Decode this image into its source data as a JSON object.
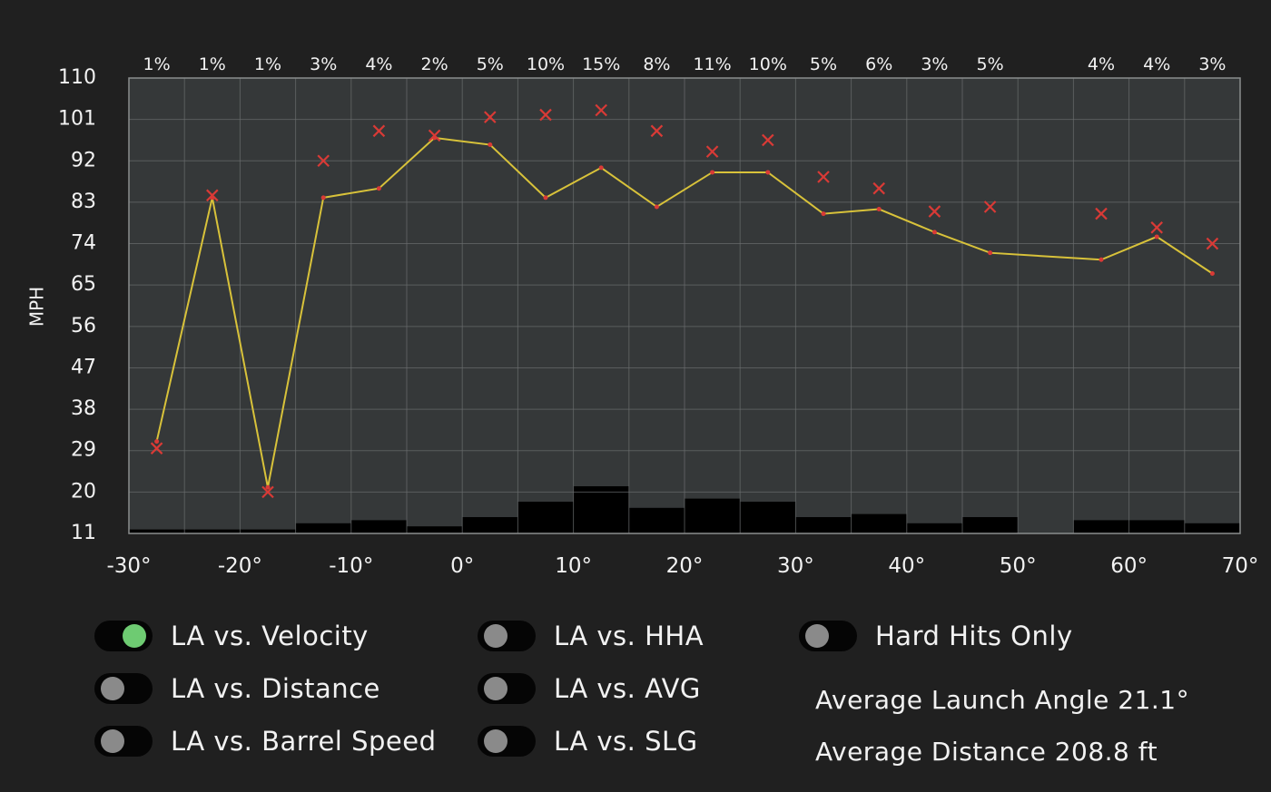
{
  "chart_data": {
    "type": "line",
    "ylabel": "MPH",
    "xlabel": "",
    "xlim": [
      -30,
      70
    ],
    "ylim": [
      11,
      110
    ],
    "x_ticks": [
      "-30°",
      "-20°",
      "-10°",
      "0°",
      "10°",
      "20°",
      "30°",
      "40°",
      "50°",
      "60°",
      "70°"
    ],
    "y_ticks": [
      "110",
      "101",
      "92",
      "83",
      "74",
      "65",
      "56",
      "47",
      "38",
      "29",
      "20",
      "11"
    ],
    "x_tick_values": [
      -30,
      -20,
      -10,
      0,
      10,
      20,
      30,
      40,
      50,
      60,
      70
    ],
    "y_tick_values": [
      110,
      101,
      92,
      83,
      74,
      65,
      56,
      47,
      38,
      29,
      20,
      11
    ],
    "bins": [
      {
        "center": -27.5,
        "pct": "1%",
        "bar": 1
      },
      {
        "center": -22.5,
        "pct": "1%",
        "bar": 1
      },
      {
        "center": -17.5,
        "pct": "1%",
        "bar": 1
      },
      {
        "center": -12.5,
        "pct": "3%",
        "bar": 3
      },
      {
        "center": -7.5,
        "pct": "4%",
        "bar": 4
      },
      {
        "center": -2.5,
        "pct": "2%",
        "bar": 2
      },
      {
        "center": 2.5,
        "pct": "5%",
        "bar": 5
      },
      {
        "center": 7.5,
        "pct": "10%",
        "bar": 10
      },
      {
        "center": 12.5,
        "pct": "15%",
        "bar": 15
      },
      {
        "center": 17.5,
        "pct": "8%",
        "bar": 8
      },
      {
        "center": 22.5,
        "pct": "11%",
        "bar": 11
      },
      {
        "center": 27.5,
        "pct": "10%",
        "bar": 10
      },
      {
        "center": 32.5,
        "pct": "5%",
        "bar": 5
      },
      {
        "center": 37.5,
        "pct": "6%",
        "bar": 6
      },
      {
        "center": 42.5,
        "pct": "3%",
        "bar": 3
      },
      {
        "center": 47.5,
        "pct": "5%",
        "bar": 5
      },
      {
        "center": 57.5,
        "pct": "4%",
        "bar": 4
      },
      {
        "center": 62.5,
        "pct": "4%",
        "bar": 4
      },
      {
        "center": 67.5,
        "pct": "3%",
        "bar": 3
      }
    ],
    "series": [
      {
        "type": "line",
        "color": "#d8c23a",
        "points": [
          [
            -27.5,
            31
          ],
          [
            -22.5,
            84
          ],
          [
            -17.5,
            21
          ],
          [
            -12.5,
            84
          ],
          [
            -7.5,
            86
          ],
          [
            -2.5,
            97
          ],
          [
            2.5,
            95.5
          ],
          [
            7.5,
            84
          ],
          [
            12.5,
            90.5
          ],
          [
            17.5,
            82
          ],
          [
            22.5,
            89.5
          ],
          [
            27.5,
            89.5
          ],
          [
            32.5,
            80.5
          ],
          [
            37.5,
            81.5
          ],
          [
            42.5,
            76.5
          ],
          [
            47.5,
            72
          ],
          [
            57.5,
            70.5
          ],
          [
            62.5,
            75.5
          ],
          [
            67.5,
            67.5
          ]
        ]
      },
      {
        "type": "scatter",
        "marker": "x",
        "color": "#d93a36",
        "points": [
          [
            -27.5,
            29.5
          ],
          [
            -22.5,
            84.5
          ],
          [
            -17.5,
            20
          ],
          [
            -12.5,
            92
          ],
          [
            -7.5,
            98.5
          ],
          [
            -2.5,
            97.5
          ],
          [
            2.5,
            101.5
          ],
          [
            7.5,
            102
          ],
          [
            12.5,
            103
          ],
          [
            17.5,
            98.5
          ],
          [
            22.5,
            94
          ],
          [
            27.5,
            96.5
          ],
          [
            32.5,
            88.5
          ],
          [
            37.5,
            86
          ],
          [
            42.5,
            81
          ],
          [
            47.5,
            82
          ],
          [
            57.5,
            80.5
          ],
          [
            62.5,
            77.5
          ],
          [
            67.5,
            74
          ]
        ]
      }
    ],
    "grid": true,
    "legend": "none"
  },
  "controls": {
    "toggles": [
      {
        "label": "LA vs. Velocity",
        "on": true
      },
      {
        "label": "LA vs. Distance",
        "on": false
      },
      {
        "label": "LA vs. Barrel Speed",
        "on": false
      },
      {
        "label": "LA vs. HHA",
        "on": false
      },
      {
        "label": "LA vs. AVG",
        "on": false
      },
      {
        "label": "LA vs. SLG",
        "on": false
      },
      {
        "label": "Hard Hits Only",
        "on": false
      }
    ]
  },
  "stats": {
    "avg_launch_angle": "Average Launch Angle 21.1°",
    "avg_distance": "Average Distance 208.8 ft"
  },
  "colors": {
    "plot_bg": "#353839",
    "grid": "#6a6d6e",
    "bars": "#000000",
    "line": "#d8c23a",
    "markers": "#d93a36",
    "toggle_on": "#6ecb72",
    "toggle_off": "#8a8a8a"
  }
}
